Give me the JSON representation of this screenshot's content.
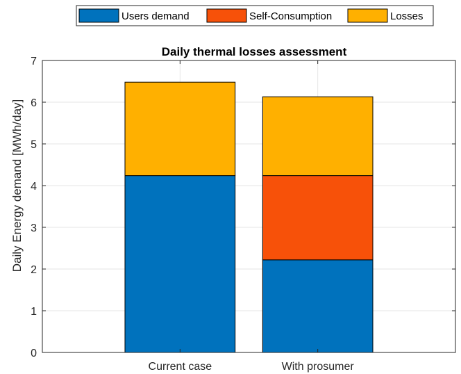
{
  "chart_data": {
    "type": "bar",
    "stacked": true,
    "title": "Daily thermal losses assessment",
    "xlabel": "",
    "ylabel": "Daily Energy demand [MWh/day]",
    "categories": [
      "Current case",
      "With prosumer"
    ],
    "series": [
      {
        "name": "Users demand",
        "color": "#0072BD",
        "values": [
          4.24,
          2.22
        ]
      },
      {
        "name": "Self-Consumption",
        "color": "#F75109",
        "values": [
          0,
          2.02
        ]
      },
      {
        "name": "Losses",
        "color": "#FFB000",
        "values": [
          2.24,
          1.89
        ]
      }
    ],
    "ylim": [
      0,
      7
    ],
    "yticks": [
      "0",
      "1",
      "2",
      "3",
      "4",
      "5",
      "6",
      "7"
    ],
    "grid": true,
    "legend_position": "top-outside-horizontal"
  }
}
